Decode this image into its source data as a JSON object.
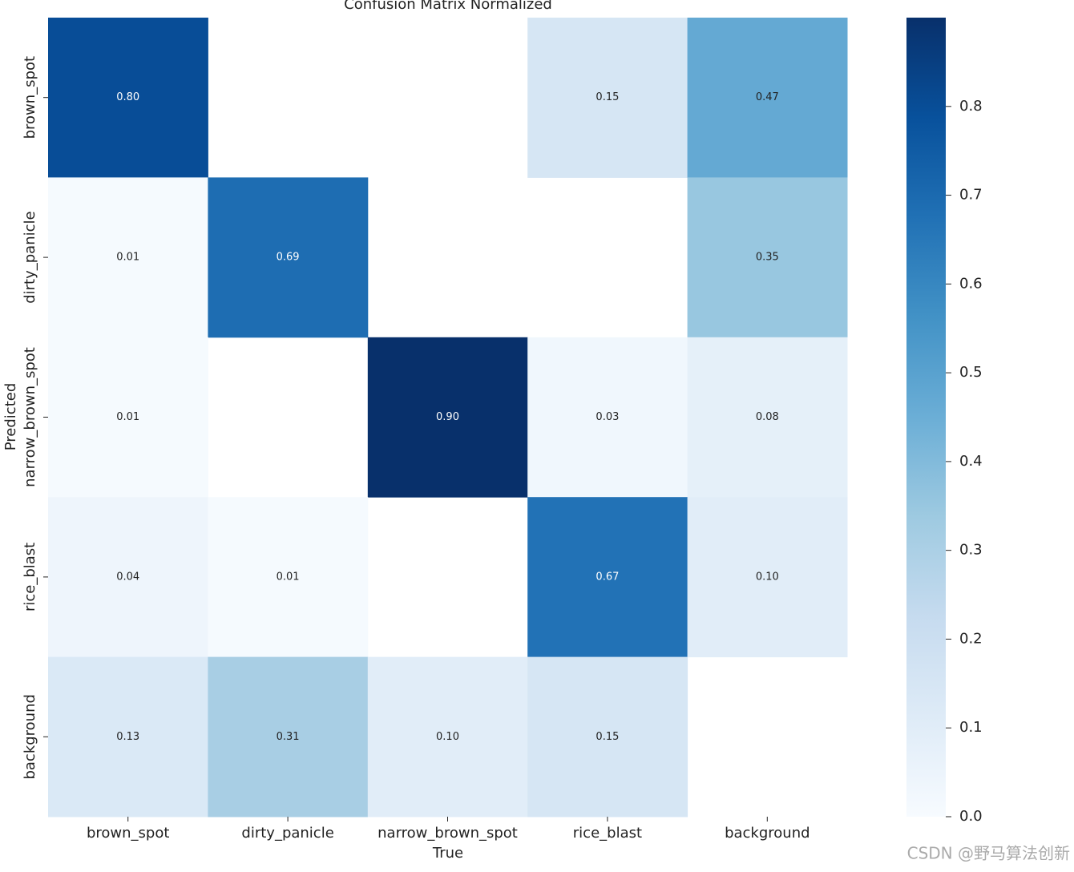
{
  "chart_data": {
    "type": "heatmap",
    "title": "Confusion Matrix Normalized",
    "x_label": "True",
    "y_label": "Predicted",
    "x_categories": [
      "brown_spot",
      "dirty_panicle",
      "narrow_brown_spot",
      "rice_blast",
      "background"
    ],
    "y_categories": [
      "brown_spot",
      "dirty_panicle",
      "narrow_brown_spot",
      "rice_blast",
      "background"
    ],
    "values": [
      [
        0.8,
        null,
        null,
        0.15,
        0.47
      ],
      [
        0.01,
        0.69,
        null,
        null,
        0.35
      ],
      [
        0.01,
        null,
        0.9,
        0.03,
        0.08
      ],
      [
        0.04,
        0.01,
        null,
        0.67,
        0.1
      ],
      [
        0.13,
        0.31,
        0.1,
        0.15,
        null
      ]
    ],
    "value_labels": [
      [
        "0.80",
        null,
        null,
        "0.15",
        "0.47"
      ],
      [
        "0.01",
        "0.69",
        null,
        null,
        "0.35"
      ],
      [
        "0.01",
        null,
        "0.90",
        "0.03",
        "0.08"
      ],
      [
        "0.04",
        "0.01",
        null,
        "0.67",
        "0.10"
      ],
      [
        "0.13",
        "0.31",
        "0.10",
        "0.15",
        null
      ]
    ],
    "colormap": "Blues",
    "zlim": [
      0,
      0.9
    ],
    "zticks": [
      {
        "value": 0,
        "label": "0.0"
      },
      0.1,
      0.2,
      0.3,
      0.4,
      0.5,
      0.6,
      0.7,
      0.8
    ],
    "watermark": "CSDN @野马算法创新"
  }
}
